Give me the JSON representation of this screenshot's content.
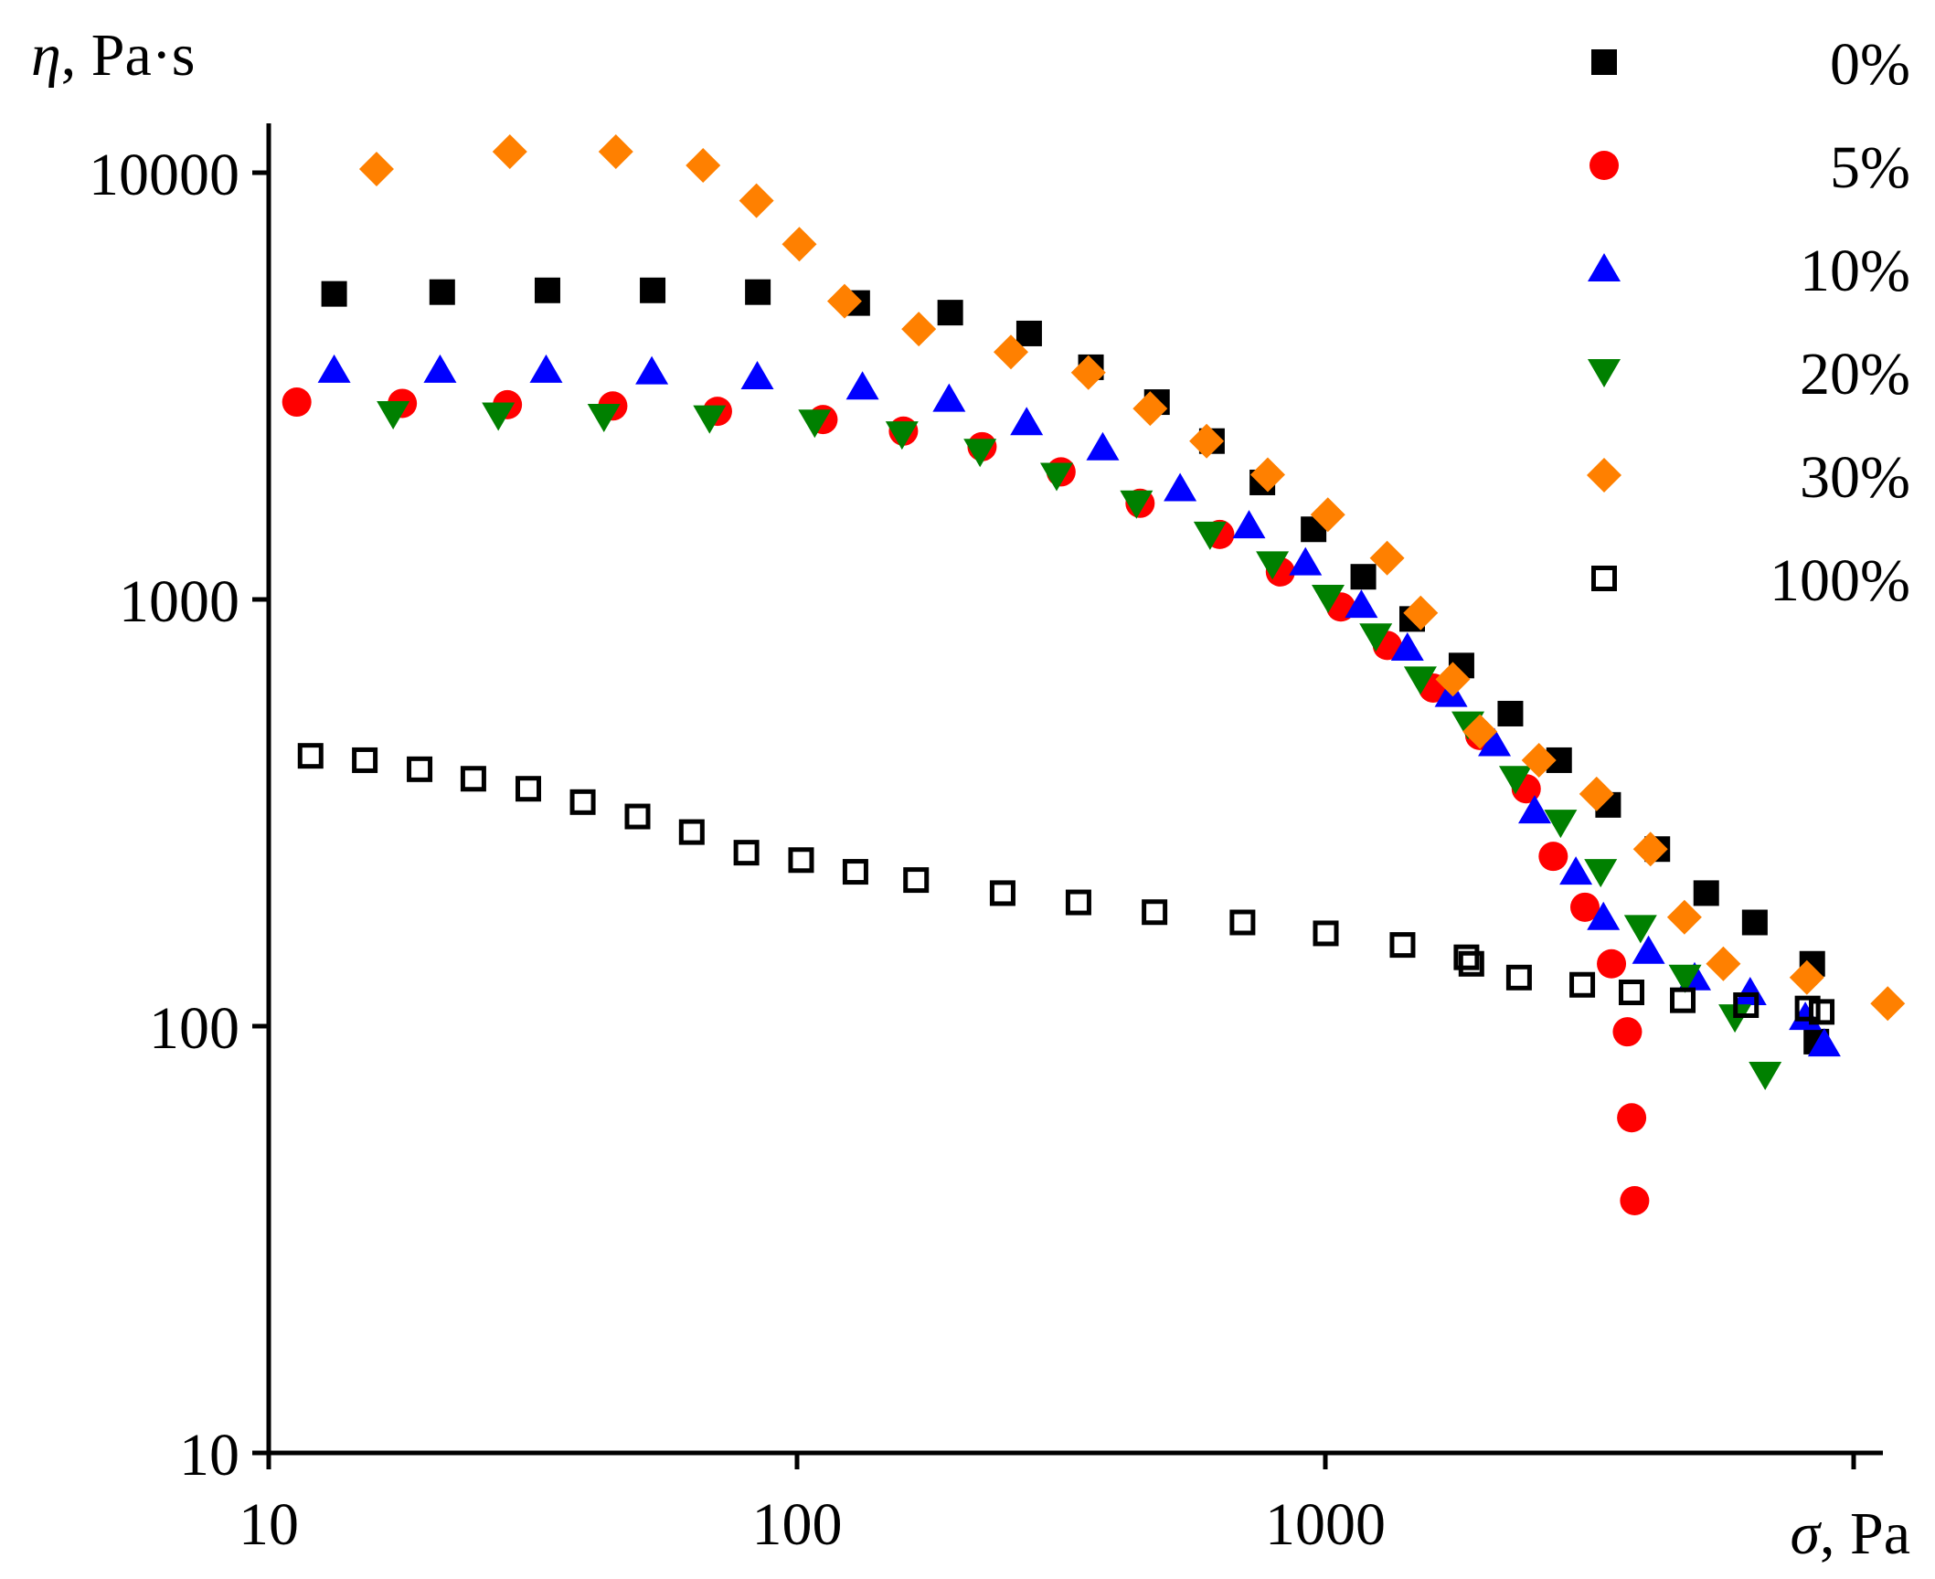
{
  "chart_data": {
    "type": "scatter",
    "title": "",
    "xlabel_symbol": "σ",
    "xlabel_unit": ", Pa",
    "ylabel_symbol": "η",
    "ylabel_unit": ", Pa·s",
    "xscale": "log",
    "yscale": "log",
    "xlim": [
      10,
      12000
    ],
    "ylim": [
      10,
      10000
    ],
    "x_ticks": [
      10,
      100,
      1000
    ],
    "x_tick_labels": [
      "10",
      "100",
      "1000"
    ],
    "y_ticks": [
      10,
      100,
      1000,
      10000
    ],
    "y_tick_labels": [
      "10",
      "100",
      "1000",
      "10000"
    ],
    "legend_position": "top-right",
    "series": [
      {
        "name": "0%",
        "marker": "square-filled",
        "color": "#000000",
        "points": [
          [
            13.3,
            5200
          ],
          [
            21.3,
            5250
          ],
          [
            33.7,
            5300
          ],
          [
            53.3,
            5300
          ],
          [
            84.3,
            5250
          ],
          [
            130,
            4950
          ],
          [
            195,
            4700
          ],
          [
            275,
            4200
          ],
          [
            360,
            3500
          ],
          [
            480,
            2900
          ],
          [
            610,
            2350
          ],
          [
            760,
            1880
          ],
          [
            950,
            1460
          ],
          [
            1180,
            1130
          ],
          [
            1460,
            900
          ],
          [
            1810,
            700
          ],
          [
            2240,
            540
          ],
          [
            2770,
            420
          ],
          [
            3430,
            330
          ],
          [
            4250,
            260
          ],
          [
            5260,
            205
          ],
          [
            6500,
            175
          ],
          [
            8350,
            140
          ],
          [
            8500,
            92
          ]
        ]
      },
      {
        "name": "5%",
        "marker": "circle-filled",
        "color": "#ff0000",
        "points": [
          [
            11.3,
            2900
          ],
          [
            17.9,
            2880
          ],
          [
            28.3,
            2860
          ],
          [
            44.8,
            2840
          ],
          [
            70.7,
            2760
          ],
          [
            112,
            2640
          ],
          [
            159,
            2480
          ],
          [
            224,
            2280
          ],
          [
            316,
            1990
          ],
          [
            446,
            1680
          ],
          [
            631,
            1420
          ],
          [
            822,
            1160
          ],
          [
            1070,
            960
          ],
          [
            1310,
            780
          ],
          [
            1600,
            620
          ],
          [
            1960,
            480
          ],
          [
            2400,
            360
          ],
          [
            2700,
            250
          ],
          [
            3100,
            190
          ],
          [
            3480,
            140
          ],
          [
            3730,
            97
          ],
          [
            3800,
            61
          ],
          [
            3850,
            39
          ]
        ]
      },
      {
        "name": "10%",
        "marker": "triangle-up-filled",
        "color": "#0000ff",
        "points": [
          [
            13.3,
            3450
          ],
          [
            21.1,
            3450
          ],
          [
            33.5,
            3450
          ],
          [
            53.1,
            3420
          ],
          [
            84.1,
            3330
          ],
          [
            133,
            3150
          ],
          [
            194,
            2950
          ],
          [
            272,
            2600
          ],
          [
            379,
            2270
          ],
          [
            531,
            1820
          ],
          [
            717,
            1490
          ],
          [
            917,
            1220
          ],
          [
            1170,
            970
          ],
          [
            1430,
            770
          ],
          [
            1730,
            600
          ],
          [
            2090,
            460
          ],
          [
            2490,
            320
          ],
          [
            2980,
            230
          ],
          [
            3360,
            180
          ],
          [
            4090,
            150
          ],
          [
            5000,
            130
          ],
          [
            6370,
            120
          ],
          [
            8100,
            105
          ],
          [
            8800,
            91
          ]
        ]
      },
      {
        "name": "20%",
        "marker": "triangle-down-filled",
        "color": "#008000",
        "points": [
          [
            17.2,
            2720
          ],
          [
            27.2,
            2700
          ],
          [
            43.1,
            2680
          ],
          [
            68.3,
            2660
          ],
          [
            108,
            2600
          ],
          [
            158,
            2440
          ],
          [
            222,
            2220
          ],
          [
            310,
            1950
          ],
          [
            439,
            1680
          ],
          [
            605,
            1420
          ],
          [
            794,
            1210
          ],
          [
            1012,
            1010
          ],
          [
            1246,
            820
          ],
          [
            1513,
            650
          ],
          [
            1862,
            510
          ],
          [
            2290,
            380
          ],
          [
            2788,
            300
          ],
          [
            3320,
            230
          ],
          [
            3950,
            170
          ],
          [
            4796,
            130
          ],
          [
            5960,
            105
          ],
          [
            6800,
            77
          ]
        ]
      },
      {
        "name": "30%",
        "marker": "diamond-filled",
        "color": "#ff8000",
        "points": [
          [
            16.0,
            10200
          ],
          [
            28.6,
            11200
          ],
          [
            45.4,
            11200
          ],
          [
            66.4,
            10400
          ],
          [
            83.8,
            8600
          ],
          [
            101,
            6800
          ],
          [
            123,
            5000
          ],
          [
            170,
            4300
          ],
          [
            254,
            3800
          ],
          [
            356,
            3400
          ],
          [
            466,
            2800
          ],
          [
            596,
            2350
          ],
          [
            778,
            1960
          ],
          [
            1011,
            1580
          ],
          [
            1309,
            1250
          ],
          [
            1515,
            930
          ],
          [
            1743,
            650
          ],
          [
            1962,
            490
          ],
          [
            2537,
            420
          ],
          [
            3262,
            350
          ],
          [
            4125,
            260
          ],
          [
            4783,
            180
          ],
          [
            5666,
            140
          ],
          [
            8155,
            130
          ],
          [
            11600,
            113
          ]
        ]
      },
      {
        "name": "100%",
        "marker": "square-open",
        "color": "#000000",
        "points": [
          [
            12.0,
            430
          ],
          [
            15.2,
            420
          ],
          [
            19.3,
            400
          ],
          [
            24.4,
            380
          ],
          [
            31.0,
            360
          ],
          [
            39.3,
            335
          ],
          [
            49.9,
            310
          ],
          [
            63.2,
            285
          ],
          [
            80.2,
            255
          ],
          [
            101.8,
            245
          ],
          [
            129,
            230
          ],
          [
            168,
            220
          ],
          [
            245,
            205
          ],
          [
            341,
            195
          ],
          [
            475,
            185
          ],
          [
            697,
            175
          ],
          [
            1002,
            165
          ],
          [
            1400,
            155
          ],
          [
            1850,
            145
          ],
          [
            1890,
            140
          ],
          [
            2326,
            130
          ],
          [
            3064,
            125
          ],
          [
            3798,
            120
          ],
          [
            4748,
            115
          ],
          [
            6255,
            112
          ],
          [
            8182,
            110
          ],
          [
            8700,
            108
          ]
        ]
      }
    ]
  }
}
